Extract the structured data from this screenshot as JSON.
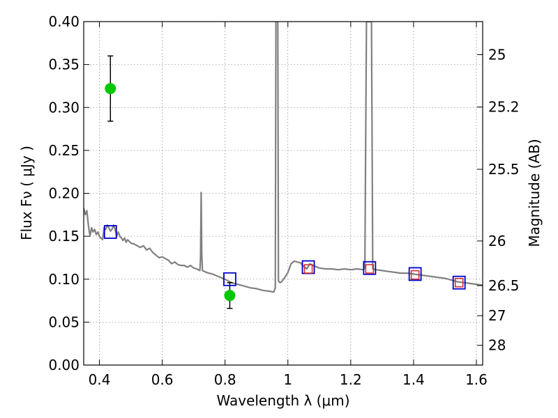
{
  "chart_data": {
    "type": "line",
    "title": "",
    "xlabel": "Wavelength  λ (μm)",
    "ylabel": "Flux  Fν  ( μJy )",
    "y2label": "Magnitude (AB)",
    "xlim": [
      0.35,
      1.62
    ],
    "ylim": [
      0.0,
      0.4
    ],
    "grid": true,
    "x_ticks": [
      0.4,
      0.6,
      0.8,
      1.0,
      1.2,
      1.4,
      1.6
    ],
    "x_tick_labels": [
      "0.4",
      "0.6",
      "0.8",
      "1",
      "1.2",
      "1.4",
      "1.6"
    ],
    "y_ticks": [
      0.0,
      0.05,
      0.1,
      0.15,
      0.2,
      0.25,
      0.3,
      0.35,
      0.4
    ],
    "y_tick_labels": [
      "0.00",
      "0.05",
      "0.10",
      "0.15",
      "0.20",
      "0.25",
      "0.30",
      "0.35",
      "0.40"
    ],
    "y2_ticks": [
      {
        "flux": 0.3615,
        "label": "25"
      },
      {
        "flux": 0.3005,
        "label": "25.2"
      },
      {
        "flux": 0.228,
        "label": "25.5"
      },
      {
        "flux": 0.1445,
        "label": "26"
      },
      {
        "flux": 0.0925,
        "label": "26.5"
      },
      {
        "flux": 0.0575,
        "label": "27"
      },
      {
        "flux": 0.023,
        "label": "28"
      }
    ],
    "series": [
      {
        "kind": "spectrum",
        "color": "#808080",
        "points": [
          [
            0.35,
            0.183
          ],
          [
            0.355,
            0.175
          ],
          [
            0.36,
            0.18
          ],
          [
            0.365,
            0.162
          ],
          [
            0.37,
            0.15
          ],
          [
            0.375,
            0.16
          ],
          [
            0.38,
            0.155
          ],
          [
            0.385,
            0.158
          ],
          [
            0.39,
            0.152
          ],
          [
            0.395,
            0.155
          ],
          [
            0.4,
            0.15
          ],
          [
            0.405,
            0.148
          ],
          [
            0.41,
            0.146
          ],
          [
            0.415,
            0.16
          ],
          [
            0.42,
            0.158
          ],
          [
            0.425,
            0.163
          ],
          [
            0.43,
            0.16
          ],
          [
            0.435,
            0.156
          ],
          [
            0.44,
            0.158
          ],
          [
            0.445,
            0.163
          ],
          [
            0.45,
            0.158
          ],
          [
            0.455,
            0.15
          ],
          [
            0.46,
            0.155
          ],
          [
            0.465,
            0.15
          ],
          [
            0.47,
            0.148
          ],
          [
            0.475,
            0.145
          ],
          [
            0.48,
            0.148
          ],
          [
            0.485,
            0.143
          ],
          [
            0.49,
            0.146
          ],
          [
            0.5,
            0.142
          ],
          [
            0.51,
            0.141
          ],
          [
            0.52,
            0.139
          ],
          [
            0.53,
            0.137
          ],
          [
            0.54,
            0.139
          ],
          [
            0.55,
            0.134
          ],
          [
            0.56,
            0.136
          ],
          [
            0.57,
            0.131
          ],
          [
            0.58,
            0.128
          ],
          [
            0.59,
            0.125
          ],
          [
            0.6,
            0.126
          ],
          [
            0.61,
            0.124
          ],
          [
            0.62,
            0.122
          ],
          [
            0.63,
            0.118
          ],
          [
            0.64,
            0.12
          ],
          [
            0.65,
            0.117
          ],
          [
            0.66,
            0.116
          ],
          [
            0.67,
            0.116
          ],
          [
            0.68,
            0.114
          ],
          [
            0.69,
            0.116
          ],
          [
            0.7,
            0.113
          ],
          [
            0.71,
            0.112
          ],
          [
            0.72,
            0.11
          ],
          [
            0.722,
            0.125
          ],
          [
            0.724,
            0.201
          ],
          [
            0.726,
            0.13
          ],
          [
            0.728,
            0.11
          ],
          [
            0.74,
            0.108
          ],
          [
            0.76,
            0.106
          ],
          [
            0.78,
            0.103
          ],
          [
            0.8,
            0.1
          ],
          [
            0.82,
            0.096
          ],
          [
            0.84,
            0.094
          ],
          [
            0.86,
            0.092
          ],
          [
            0.88,
            0.09
          ],
          [
            0.9,
            0.089
          ],
          [
            0.92,
            0.087
          ],
          [
            0.94,
            0.086
          ],
          [
            0.955,
            0.085
          ],
          [
            0.96,
            0.09
          ],
          [
            0.962,
            0.4
          ],
          [
            0.965,
            0.4
          ],
          [
            0.968,
            0.4
          ],
          [
            0.97,
            0.098
          ],
          [
            0.975,
            0.096
          ],
          [
            0.98,
            0.097
          ],
          [
            0.99,
            0.102
          ],
          [
            1.0,
            0.108
          ],
          [
            1.01,
            0.118
          ],
          [
            1.02,
            0.121
          ],
          [
            1.03,
            0.12
          ],
          [
            1.04,
            0.119
          ],
          [
            1.05,
            0.115
          ],
          [
            1.06,
            0.112
          ],
          [
            1.07,
            0.118
          ],
          [
            1.08,
            0.116
          ],
          [
            1.1,
            0.113
          ],
          [
            1.12,
            0.112
          ],
          [
            1.14,
            0.112
          ],
          [
            1.16,
            0.111
          ],
          [
            1.18,
            0.112
          ],
          [
            1.2,
            0.111
          ],
          [
            1.22,
            0.112
          ],
          [
            1.24,
            0.111
          ],
          [
            1.245,
            0.113
          ],
          [
            1.25,
            0.4
          ],
          [
            1.258,
            0.4
          ],
          [
            1.266,
            0.4
          ],
          [
            1.27,
            0.112
          ],
          [
            1.28,
            0.111
          ],
          [
            1.3,
            0.11
          ],
          [
            1.32,
            0.109
          ],
          [
            1.34,
            0.108
          ],
          [
            1.36,
            0.107
          ],
          [
            1.38,
            0.107
          ],
          [
            1.4,
            0.106
          ],
          [
            1.42,
            0.105
          ],
          [
            1.44,
            0.104
          ],
          [
            1.46,
            0.103
          ],
          [
            1.48,
            0.102
          ],
          [
            1.5,
            0.101
          ],
          [
            1.52,
            0.099
          ],
          [
            1.54,
            0.097
          ],
          [
            1.56,
            0.096
          ],
          [
            1.58,
            0.095
          ],
          [
            1.6,
            0.094
          ],
          [
            1.62,
            0.093
          ]
        ]
      },
      {
        "kind": "observed",
        "color": "#00c800",
        "points": [
          {
            "x": 0.435,
            "y": 0.322,
            "err": 0.038
          },
          {
            "x": 0.815,
            "y": 0.081,
            "err": 0.015
          }
        ]
      },
      {
        "kind": "model_box",
        "color": "#0000cc",
        "points": [
          {
            "x": 0.435,
            "y": 0.155
          },
          {
            "x": 0.815,
            "y": 0.1
          },
          {
            "x": 1.065,
            "y": 0.114
          },
          {
            "x": 1.26,
            "y": 0.113
          },
          {
            "x": 1.405,
            "y": 0.106
          },
          {
            "x": 1.545,
            "y": 0.096
          }
        ]
      },
      {
        "kind": "model_inner_box",
        "color": "#d62728",
        "points": [
          {
            "x": 1.065,
            "y": 0.112
          },
          {
            "x": 1.26,
            "y": 0.112
          },
          {
            "x": 1.405,
            "y": 0.105
          },
          {
            "x": 1.545,
            "y": 0.096
          }
        ]
      }
    ]
  }
}
